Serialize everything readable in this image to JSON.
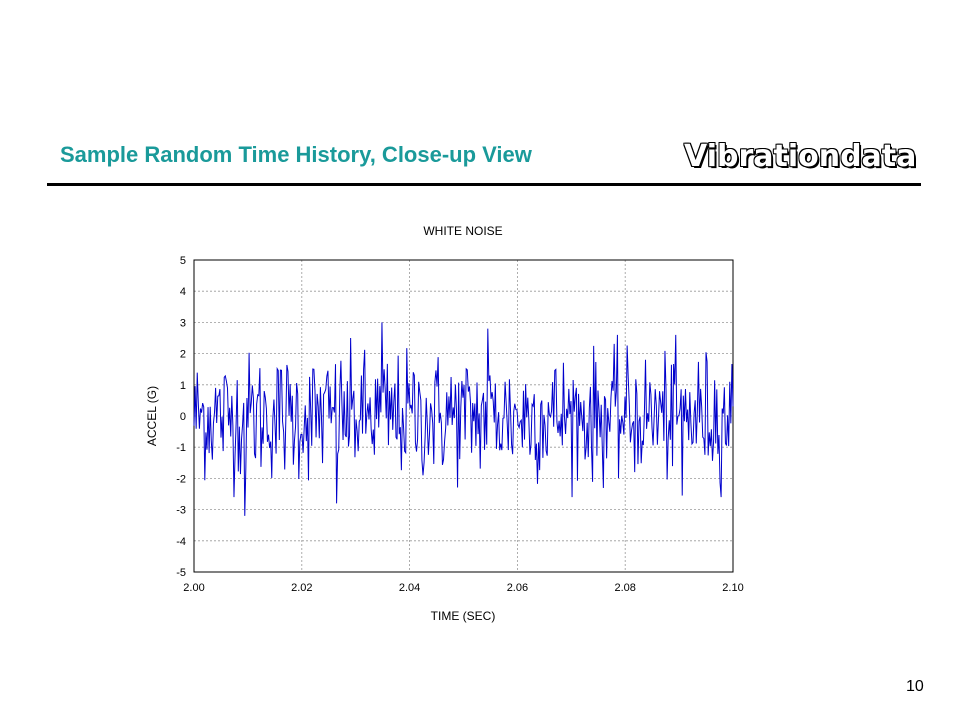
{
  "slide": {
    "title": "Sample Random Time History, Close-up View",
    "brand": "Vibrationdata",
    "page_number": "10"
  },
  "colors": {
    "title": "#1a9a9a",
    "series": "#0000cc",
    "grid": "#999999"
  },
  "chart_data": {
    "type": "line",
    "title": "WHITE NOISE",
    "xlabel": "TIME (SEC)",
    "ylabel": "ACCEL (G)",
    "xlim": [
      2.0,
      2.1
    ],
    "ylim": [
      -5,
      5
    ],
    "xticks": [
      "2.00",
      "2.02",
      "2.04",
      "2.06",
      "2.08",
      "2.10"
    ],
    "yticks": [
      "5",
      "4",
      "3",
      "2",
      "1",
      "0",
      "-1",
      "-2",
      "-3",
      "-4",
      "-5"
    ],
    "grid": true,
    "series": [
      {
        "sample_count": 500,
        "peaks": [
          {
            "x": 2.0095,
            "y": -3.2
          },
          {
            "x": 2.0348,
            "y": 3.0
          },
          {
            "x": 2.0545,
            "y": 2.8
          },
          {
            "x": 2.0905,
            "y": -2.55
          },
          {
            "x": 2.0265,
            "y": -2.8
          }
        ],
        "rms": 1.0
      }
    ]
  }
}
